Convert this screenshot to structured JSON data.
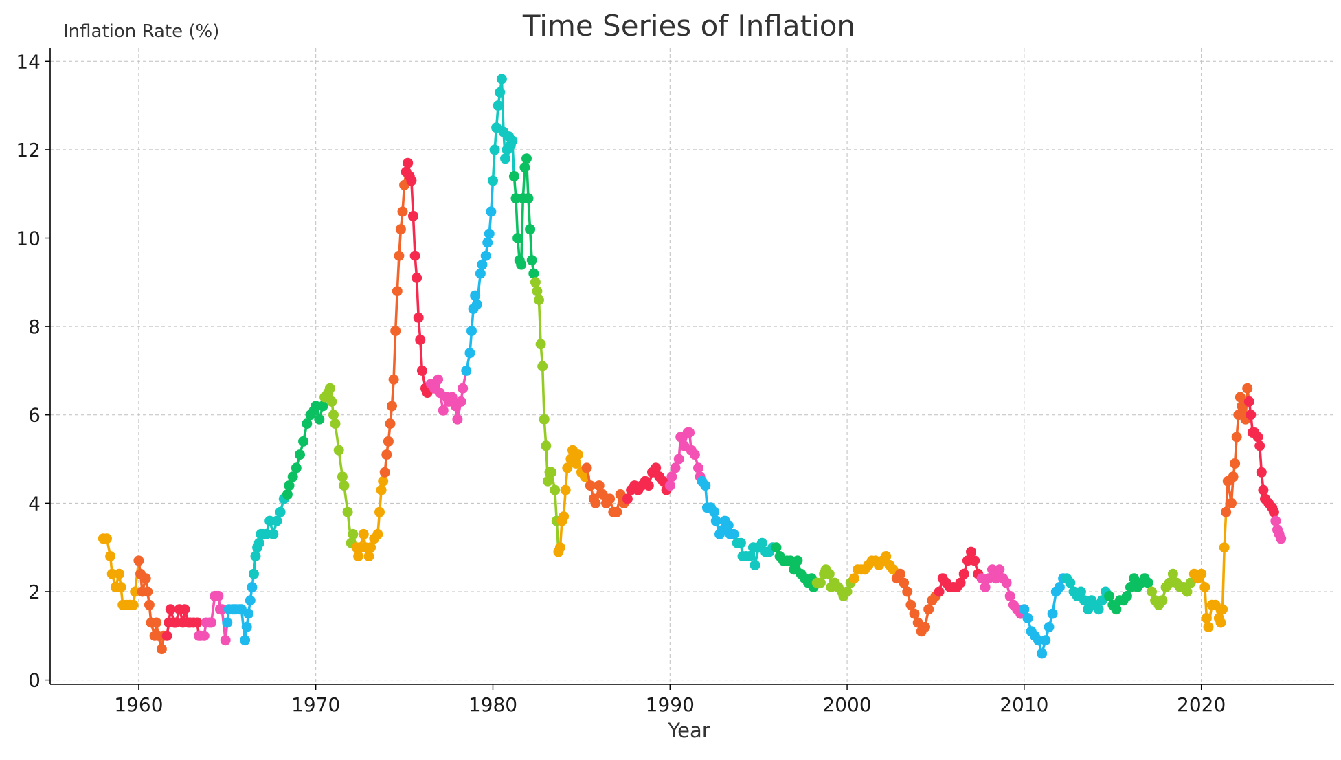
{
  "chart_data": {
    "type": "line",
    "title": "Time Series of Inflation",
    "xlabel": "Year",
    "ylabel": "Inflation Rate (%)",
    "xlim": [
      1955,
      2027.5
    ],
    "ylim": [
      -0.1,
      14.3
    ],
    "x_ticks": [
      1960,
      1970,
      1980,
      1990,
      2000,
      2010,
      2020
    ],
    "y_ticks": [
      0,
      2,
      4,
      6,
      8,
      10,
      12,
      14
    ],
    "grid": true,
    "markers": true,
    "segment_colors": [
      "#F4A700",
      "#F2642A",
      "#F52A4E",
      "#F451B4",
      "#1EBAEE",
      "#12C8C0",
      "#0BC060",
      "#94CB24"
    ],
    "points": [
      [
        1958.0,
        3.2
      ],
      [
        1958.2,
        3.2
      ],
      [
        1958.4,
        2.8
      ],
      [
        1958.5,
        2.4
      ],
      [
        1958.7,
        2.1
      ],
      [
        1958.9,
        2.4
      ],
      [
        1959.0,
        2.1
      ],
      [
        1959.1,
        1.7
      ],
      [
        1959.3,
        1.7
      ],
      [
        1959.5,
        1.7
      ],
      [
        1959.7,
        1.7
      ],
      [
        1959.8,
        2.0
      ],
      [
        1960.0,
        2.7
      ],
      [
        1960.1,
        2.4
      ],
      [
        1960.2,
        2.0
      ],
      [
        1960.4,
        2.3
      ],
      [
        1960.5,
        2.0
      ],
      [
        1960.6,
        1.7
      ],
      [
        1960.7,
        1.3
      ],
      [
        1960.9,
        1.0
      ],
      [
        1961.0,
        1.3
      ],
      [
        1961.1,
        1.0
      ],
      [
        1961.3,
        0.7
      ],
      [
        1961.4,
        1.0
      ],
      [
        1961.6,
        1.0
      ],
      [
        1961.7,
        1.3
      ],
      [
        1961.8,
        1.6
      ],
      [
        1962.0,
        1.3
      ],
      [
        1962.1,
        1.3
      ],
      [
        1962.3,
        1.6
      ],
      [
        1962.5,
        1.3
      ],
      [
        1962.6,
        1.6
      ],
      [
        1962.8,
        1.3
      ],
      [
        1962.9,
        1.3
      ],
      [
        1963.1,
        1.3
      ],
      [
        1963.3,
        1.3
      ],
      [
        1963.4,
        1.0
      ],
      [
        1963.5,
        1.0
      ],
      [
        1963.7,
        1.0
      ],
      [
        1963.8,
        1.3
      ],
      [
        1964.0,
        1.3
      ],
      [
        1964.1,
        1.3
      ],
      [
        1964.3,
        1.9
      ],
      [
        1964.4,
        1.9
      ],
      [
        1964.5,
        1.9
      ],
      [
        1964.6,
        1.6
      ],
      [
        1964.7,
        1.6
      ],
      [
        1964.9,
        0.9
      ],
      [
        1965.0,
        1.3
      ],
      [
        1965.1,
        1.6
      ],
      [
        1965.3,
        1.6
      ],
      [
        1965.4,
        1.6
      ],
      [
        1965.5,
        1.6
      ],
      [
        1965.7,
        1.6
      ],
      [
        1965.8,
        1.6
      ],
      [
        1966.0,
        0.9
      ],
      [
        1966.1,
        1.2
      ],
      [
        1966.2,
        1.5
      ],
      [
        1966.3,
        1.8
      ],
      [
        1966.4,
        2.1
      ],
      [
        1966.5,
        2.4
      ],
      [
        1966.6,
        2.8
      ],
      [
        1966.7,
        3.0
      ],
      [
        1966.8,
        3.1
      ],
      [
        1966.9,
        3.3
      ],
      [
        1967.0,
        3.3
      ],
      [
        1967.2,
        3.3
      ],
      [
        1967.4,
        3.6
      ],
      [
        1967.6,
        3.3
      ],
      [
        1967.8,
        3.6
      ],
      [
        1968.0,
        3.8
      ],
      [
        1968.2,
        4.1
      ],
      [
        1968.4,
        4.2
      ],
      [
        1968.5,
        4.4
      ],
      [
        1968.7,
        4.6
      ],
      [
        1968.9,
        4.8
      ],
      [
        1969.1,
        5.1
      ],
      [
        1969.3,
        5.4
      ],
      [
        1969.5,
        5.8
      ],
      [
        1969.7,
        6.0
      ],
      [
        1969.9,
        6.1
      ],
      [
        1970.0,
        6.2
      ],
      [
        1970.2,
        5.9
      ],
      [
        1970.4,
        6.2
      ],
      [
        1970.5,
        6.4
      ],
      [
        1970.7,
        6.5
      ],
      [
        1970.8,
        6.6
      ],
      [
        1970.9,
        6.3
      ],
      [
        1971.0,
        6.0
      ],
      [
        1971.1,
        5.8
      ],
      [
        1971.3,
        5.2
      ],
      [
        1971.5,
        4.6
      ],
      [
        1971.6,
        4.4
      ],
      [
        1971.8,
        3.8
      ],
      [
        1972.0,
        3.1
      ],
      [
        1972.1,
        3.3
      ],
      [
        1972.3,
        3.0
      ],
      [
        1972.4,
        2.8
      ],
      [
        1972.5,
        3.0
      ],
      [
        1972.7,
        3.3
      ],
      [
        1972.8,
        3.0
      ],
      [
        1973.0,
        2.8
      ],
      [
        1973.1,
        3.0
      ],
      [
        1973.3,
        3.2
      ],
      [
        1973.5,
        3.3
      ],
      [
        1973.6,
        3.8
      ],
      [
        1973.7,
        4.3
      ],
      [
        1973.8,
        4.5
      ],
      [
        1973.9,
        4.7
      ],
      [
        1974.0,
        5.1
      ],
      [
        1974.1,
        5.4
      ],
      [
        1974.2,
        5.8
      ],
      [
        1974.3,
        6.2
      ],
      [
        1974.4,
        6.8
      ],
      [
        1974.5,
        7.9
      ],
      [
        1974.6,
        8.8
      ],
      [
        1974.7,
        9.6
      ],
      [
        1974.8,
        10.2
      ],
      [
        1974.9,
        10.6
      ],
      [
        1975.0,
        11.2
      ],
      [
        1975.1,
        11.5
      ],
      [
        1975.2,
        11.7
      ],
      [
        1975.3,
        11.4
      ],
      [
        1975.4,
        11.3
      ],
      [
        1975.5,
        10.5
      ],
      [
        1975.6,
        9.6
      ],
      [
        1975.7,
        9.1
      ],
      [
        1975.8,
        8.2
      ],
      [
        1975.9,
        7.7
      ],
      [
        1976.0,
        7.0
      ],
      [
        1976.2,
        6.6
      ],
      [
        1976.3,
        6.5
      ],
      [
        1976.5,
        6.7
      ],
      [
        1976.7,
        6.6
      ],
      [
        1976.9,
        6.8
      ],
      [
        1977.0,
        6.5
      ],
      [
        1977.2,
        6.1
      ],
      [
        1977.4,
        6.4
      ],
      [
        1977.5,
        6.3
      ],
      [
        1977.7,
        6.4
      ],
      [
        1977.9,
        6.2
      ],
      [
        1978.0,
        5.9
      ],
      [
        1978.2,
        6.3
      ],
      [
        1978.3,
        6.6
      ],
      [
        1978.5,
        7.0
      ],
      [
        1978.7,
        7.4
      ],
      [
        1978.8,
        7.9
      ],
      [
        1978.9,
        8.4
      ],
      [
        1979.0,
        8.7
      ],
      [
        1979.1,
        8.5
      ],
      [
        1979.3,
        9.2
      ],
      [
        1979.4,
        9.4
      ],
      [
        1979.6,
        9.6
      ],
      [
        1979.7,
        9.9
      ],
      [
        1979.8,
        10.1
      ],
      [
        1979.9,
        10.6
      ],
      [
        1980.0,
        11.3
      ],
      [
        1980.1,
        12.0
      ],
      [
        1980.2,
        12.5
      ],
      [
        1980.3,
        13.0
      ],
      [
        1980.4,
        13.3
      ],
      [
        1980.5,
        13.6
      ],
      [
        1980.6,
        12.4
      ],
      [
        1980.7,
        11.8
      ],
      [
        1980.8,
        12.0
      ],
      [
        1980.9,
        12.3
      ],
      [
        1981.0,
        12.1
      ],
      [
        1981.1,
        12.2
      ],
      [
        1981.2,
        11.4
      ],
      [
        1981.3,
        10.9
      ],
      [
        1981.4,
        10.0
      ],
      [
        1981.5,
        9.5
      ],
      [
        1981.6,
        9.4
      ],
      [
        1981.7,
        10.9
      ],
      [
        1981.8,
        11.6
      ],
      [
        1981.9,
        11.8
      ],
      [
        1982.0,
        10.9
      ],
      [
        1982.1,
        10.2
      ],
      [
        1982.2,
        9.5
      ],
      [
        1982.3,
        9.2
      ],
      [
        1982.4,
        9.0
      ],
      [
        1982.5,
        8.8
      ],
      [
        1982.6,
        8.6
      ],
      [
        1982.7,
        7.6
      ],
      [
        1982.8,
        7.1
      ],
      [
        1982.9,
        5.9
      ],
      [
        1983.0,
        5.3
      ],
      [
        1983.1,
        4.5
      ],
      [
        1983.2,
        4.7
      ],
      [
        1983.3,
        4.7
      ],
      [
        1983.5,
        4.3
      ],
      [
        1983.6,
        3.6
      ],
      [
        1983.7,
        2.9
      ],
      [
        1983.8,
        3.0
      ],
      [
        1983.9,
        3.6
      ],
      [
        1984.0,
        3.7
      ],
      [
        1984.1,
        4.3
      ],
      [
        1984.2,
        4.8
      ],
      [
        1984.4,
        5.0
      ],
      [
        1984.5,
        5.2
      ],
      [
        1984.7,
        4.9
      ],
      [
        1984.8,
        5.1
      ],
      [
        1985.0,
        4.7
      ],
      [
        1985.2,
        4.6
      ],
      [
        1985.3,
        4.8
      ],
      [
        1985.5,
        4.4
      ],
      [
        1985.7,
        4.1
      ],
      [
        1985.8,
        4.0
      ],
      [
        1986.0,
        4.4
      ],
      [
        1986.2,
        4.2
      ],
      [
        1986.4,
        4.0
      ],
      [
        1986.6,
        4.1
      ],
      [
        1986.8,
        3.8
      ],
      [
        1987.0,
        3.8
      ],
      [
        1987.2,
        4.2
      ],
      [
        1987.4,
        4.0
      ],
      [
        1987.6,
        4.1
      ],
      [
        1987.8,
        4.3
      ],
      [
        1988.0,
        4.4
      ],
      [
        1988.2,
        4.3
      ],
      [
        1988.4,
        4.4
      ],
      [
        1988.6,
        4.5
      ],
      [
        1988.8,
        4.4
      ],
      [
        1989.0,
        4.7
      ],
      [
        1989.2,
        4.8
      ],
      [
        1989.4,
        4.6
      ],
      [
        1989.6,
        4.5
      ],
      [
        1989.8,
        4.3
      ],
      [
        1990.0,
        4.4
      ],
      [
        1990.1,
        4.6
      ],
      [
        1990.3,
        4.8
      ],
      [
        1990.5,
        5.0
      ],
      [
        1990.6,
        5.5
      ],
      [
        1990.8,
        5.3
      ],
      [
        1991.0,
        5.6
      ],
      [
        1991.1,
        5.6
      ],
      [
        1991.2,
        5.2
      ],
      [
        1991.4,
        5.1
      ],
      [
        1991.6,
        4.8
      ],
      [
        1991.7,
        4.6
      ],
      [
        1991.8,
        4.5
      ],
      [
        1992.0,
        4.4
      ],
      [
        1992.1,
        3.9
      ],
      [
        1992.3,
        3.9
      ],
      [
        1992.5,
        3.8
      ],
      [
        1992.6,
        3.6
      ],
      [
        1992.8,
        3.3
      ],
      [
        1993.0,
        3.4
      ],
      [
        1993.1,
        3.6
      ],
      [
        1993.3,
        3.5
      ],
      [
        1993.4,
        3.3
      ],
      [
        1993.6,
        3.3
      ],
      [
        1993.8,
        3.1
      ],
      [
        1994.0,
        3.1
      ],
      [
        1994.1,
        2.8
      ],
      [
        1994.3,
        2.8
      ],
      [
        1994.5,
        2.8
      ],
      [
        1994.7,
        3.0
      ],
      [
        1994.8,
        2.6
      ],
      [
        1995.0,
        3.0
      ],
      [
        1995.2,
        3.1
      ],
      [
        1995.4,
        2.9
      ],
      [
        1995.6,
        2.9
      ],
      [
        1995.8,
        3.0
      ],
      [
        1996.0,
        3.0
      ],
      [
        1996.2,
        2.8
      ],
      [
        1996.4,
        2.7
      ],
      [
        1996.6,
        2.7
      ],
      [
        1996.8,
        2.7
      ],
      [
        1997.0,
        2.5
      ],
      [
        1997.2,
        2.7
      ],
      [
        1997.4,
        2.4
      ],
      [
        1997.6,
        2.3
      ],
      [
        1997.8,
        2.2
      ],
      [
        1998.0,
        2.3
      ],
      [
        1998.1,
        2.1
      ],
      [
        1998.3,
        2.2
      ],
      [
        1998.5,
        2.2
      ],
      [
        1998.7,
        2.4
      ],
      [
        1998.8,
        2.5
      ],
      [
        1999.0,
        2.4
      ],
      [
        1999.1,
        2.1
      ],
      [
        1999.3,
        2.2
      ],
      [
        1999.5,
        2.1
      ],
      [
        1999.7,
        2.0
      ],
      [
        1999.8,
        1.9
      ],
      [
        2000.0,
        2.0
      ],
      [
        2000.2,
        2.2
      ],
      [
        2000.4,
        2.3
      ],
      [
        2000.6,
        2.5
      ],
      [
        2000.8,
        2.5
      ],
      [
        2001.0,
        2.5
      ],
      [
        2001.2,
        2.6
      ],
      [
        2001.4,
        2.7
      ],
      [
        2001.6,
        2.7
      ],
      [
        2001.8,
        2.6
      ],
      [
        2002.0,
        2.7
      ],
      [
        2002.2,
        2.8
      ],
      [
        2002.4,
        2.6
      ],
      [
        2002.6,
        2.5
      ],
      [
        2002.8,
        2.3
      ],
      [
        2003.0,
        2.4
      ],
      [
        2003.2,
        2.2
      ],
      [
        2003.4,
        2.0
      ],
      [
        2003.6,
        1.7
      ],
      [
        2003.8,
        1.5
      ],
      [
        2004.0,
        1.3
      ],
      [
        2004.2,
        1.1
      ],
      [
        2004.4,
        1.2
      ],
      [
        2004.6,
        1.6
      ],
      [
        2004.8,
        1.8
      ],
      [
        2005.0,
        1.9
      ],
      [
        2005.2,
        2.0
      ],
      [
        2005.4,
        2.3
      ],
      [
        2005.6,
        2.2
      ],
      [
        2005.8,
        2.1
      ],
      [
        2006.0,
        2.1
      ],
      [
        2006.2,
        2.1
      ],
      [
        2006.4,
        2.2
      ],
      [
        2006.6,
        2.4
      ],
      [
        2006.8,
        2.7
      ],
      [
        2007.0,
        2.9
      ],
      [
        2007.2,
        2.7
      ],
      [
        2007.4,
        2.4
      ],
      [
        2007.6,
        2.3
      ],
      [
        2007.8,
        2.1
      ],
      [
        2008.0,
        2.3
      ],
      [
        2008.2,
        2.5
      ],
      [
        2008.4,
        2.3
      ],
      [
        2008.6,
        2.5
      ],
      [
        2008.8,
        2.3
      ],
      [
        2009.0,
        2.2
      ],
      [
        2009.2,
        1.9
      ],
      [
        2009.4,
        1.7
      ],
      [
        2009.6,
        1.6
      ],
      [
        2009.8,
        1.5
      ],
      [
        2010.0,
        1.6
      ],
      [
        2010.2,
        1.4
      ],
      [
        2010.4,
        1.1
      ],
      [
        2010.6,
        1.0
      ],
      [
        2010.8,
        0.9
      ],
      [
        2011.0,
        0.6
      ],
      [
        2011.2,
        0.9
      ],
      [
        2011.4,
        1.2
      ],
      [
        2011.6,
        1.5
      ],
      [
        2011.8,
        2.0
      ],
      [
        2012.0,
        2.1
      ],
      [
        2012.2,
        2.3
      ],
      [
        2012.4,
        2.3
      ],
      [
        2012.6,
        2.2
      ],
      [
        2012.8,
        2.0
      ],
      [
        2013.0,
        1.9
      ],
      [
        2013.2,
        2.0
      ],
      [
        2013.4,
        1.8
      ],
      [
        2013.6,
        1.6
      ],
      [
        2013.8,
        1.8
      ],
      [
        2014.0,
        1.7
      ],
      [
        2014.2,
        1.6
      ],
      [
        2014.4,
        1.8
      ],
      [
        2014.6,
        2.0
      ],
      [
        2014.8,
        1.9
      ],
      [
        2015.0,
        1.7
      ],
      [
        2015.2,
        1.6
      ],
      [
        2015.4,
        1.8
      ],
      [
        2015.6,
        1.8
      ],
      [
        2015.8,
        1.9
      ],
      [
        2016.0,
        2.1
      ],
      [
        2016.2,
        2.3
      ],
      [
        2016.4,
        2.1
      ],
      [
        2016.6,
        2.2
      ],
      [
        2016.8,
        2.3
      ],
      [
        2017.0,
        2.2
      ],
      [
        2017.2,
        2.0
      ],
      [
        2017.4,
        1.8
      ],
      [
        2017.6,
        1.7
      ],
      [
        2017.8,
        1.8
      ],
      [
        2018.0,
        2.1
      ],
      [
        2018.2,
        2.2
      ],
      [
        2018.4,
        2.4
      ],
      [
        2018.6,
        2.2
      ],
      [
        2018.8,
        2.1
      ],
      [
        2019.0,
        2.1
      ],
      [
        2019.2,
        2.0
      ],
      [
        2019.4,
        2.2
      ],
      [
        2019.6,
        2.4
      ],
      [
        2019.8,
        2.3
      ],
      [
        2020.0,
        2.4
      ],
      [
        2020.2,
        2.1
      ],
      [
        2020.3,
        1.4
      ],
      [
        2020.4,
        1.2
      ],
      [
        2020.6,
        1.7
      ],
      [
        2020.8,
        1.7
      ],
      [
        2021.0,
        1.4
      ],
      [
        2021.1,
        1.3
      ],
      [
        2021.2,
        1.6
      ],
      [
        2021.3,
        3.0
      ],
      [
        2021.4,
        3.8
      ],
      [
        2021.5,
        4.5
      ],
      [
        2021.7,
        4.0
      ],
      [
        2021.8,
        4.6
      ],
      [
        2021.9,
        4.9
      ],
      [
        2022.0,
        5.5
      ],
      [
        2022.1,
        6.0
      ],
      [
        2022.2,
        6.4
      ],
      [
        2022.3,
        6.2
      ],
      [
        2022.4,
        6.0
      ],
      [
        2022.5,
        5.9
      ],
      [
        2022.6,
        6.6
      ],
      [
        2022.7,
        6.3
      ],
      [
        2022.8,
        6.0
      ],
      [
        2022.9,
        5.6
      ],
      [
        2023.0,
        5.6
      ],
      [
        2023.2,
        5.5
      ],
      [
        2023.3,
        5.3
      ],
      [
        2023.4,
        4.7
      ],
      [
        2023.5,
        4.3
      ],
      [
        2023.6,
        4.1
      ],
      [
        2023.8,
        4.0
      ],
      [
        2024.0,
        3.9
      ],
      [
        2024.1,
        3.8
      ],
      [
        2024.2,
        3.6
      ],
      [
        2024.3,
        3.4
      ],
      [
        2024.4,
        3.3
      ],
      [
        2024.5,
        3.2
      ]
    ]
  }
}
